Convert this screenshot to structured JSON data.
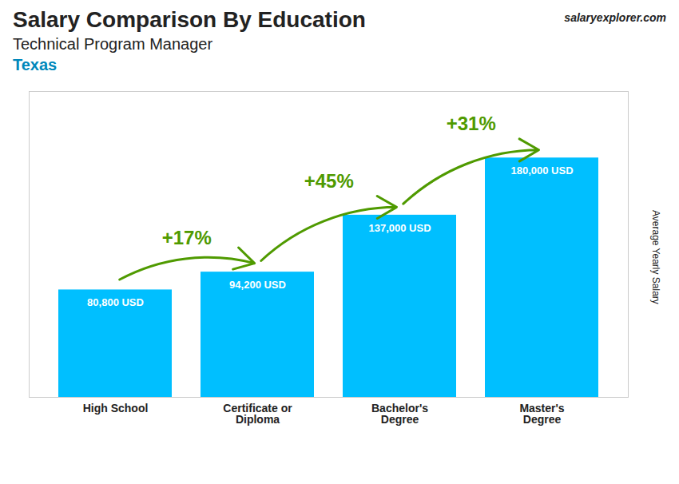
{
  "chart_data": {
    "type": "bar",
    "title": "Salary Comparison By Education",
    "subtitle": "Technical Program Manager",
    "location": "Texas",
    "source": "salaryexplorer.com",
    "ylabel": "Average Yearly Salary",
    "categories": [
      "High School",
      "Certificate or\nDiploma",
      "Bachelor's\nDegree",
      "Master's\nDegree"
    ],
    "values": [
      80800,
      94200,
      137000,
      180000
    ],
    "value_labels": [
      "80,800 USD",
      "94,200 USD",
      "137,000 USD",
      "180,000 USD"
    ],
    "data_labels": true,
    "change_labels": [
      "+17%",
      "+45%",
      "+31%"
    ],
    "color": "#00BFFF",
    "ylim": [
      0,
      230000
    ],
    "tick_labels": "x",
    "grid": false
  }
}
